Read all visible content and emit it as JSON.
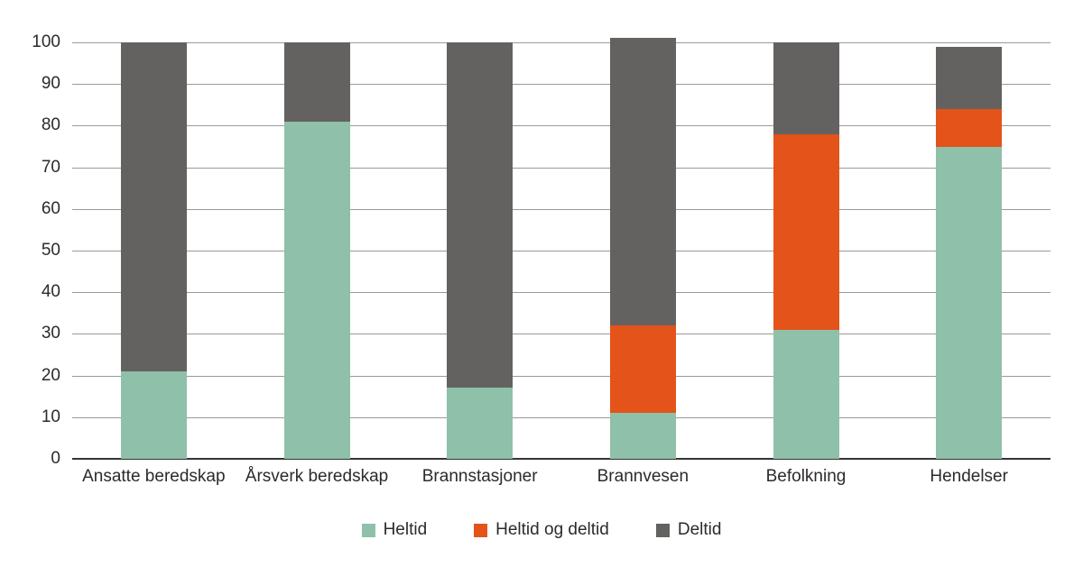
{
  "chart_data": {
    "type": "bar",
    "stacked": true,
    "title": "",
    "xlabel": "",
    "ylabel": "",
    "ylim": [
      0,
      100
    ],
    "yticks": [
      0,
      10,
      20,
      30,
      40,
      50,
      60,
      70,
      80,
      90,
      100
    ],
    "grid": "horizontal",
    "legend_position": "bottom",
    "categories": [
      "Ansatte beredskap",
      "Årsverk beredskap",
      "Brannstasjoner",
      "Brannvesen",
      "Befolkning",
      "Hendelser"
    ],
    "series": [
      {
        "name": "Heltid",
        "color": "#8FC0A9",
        "values": [
          21,
          81,
          17,
          11,
          31,
          75
        ]
      },
      {
        "name": "Heltid og deltid",
        "color": "#E3531A",
        "values": [
          0,
          0,
          0,
          21,
          47,
          9
        ]
      },
      {
        "name": "Deltid",
        "color": "#646260",
        "values": [
          79,
          19,
          83,
          69,
          22,
          15
        ]
      }
    ],
    "stack_totals": [
      100,
      100,
      100,
      101,
      100,
      99
    ]
  },
  "colors": {
    "background": "#FFFFFF",
    "gridline": "#9A9A9A",
    "axis_line": "#343434",
    "text": "#2D2A28"
  }
}
